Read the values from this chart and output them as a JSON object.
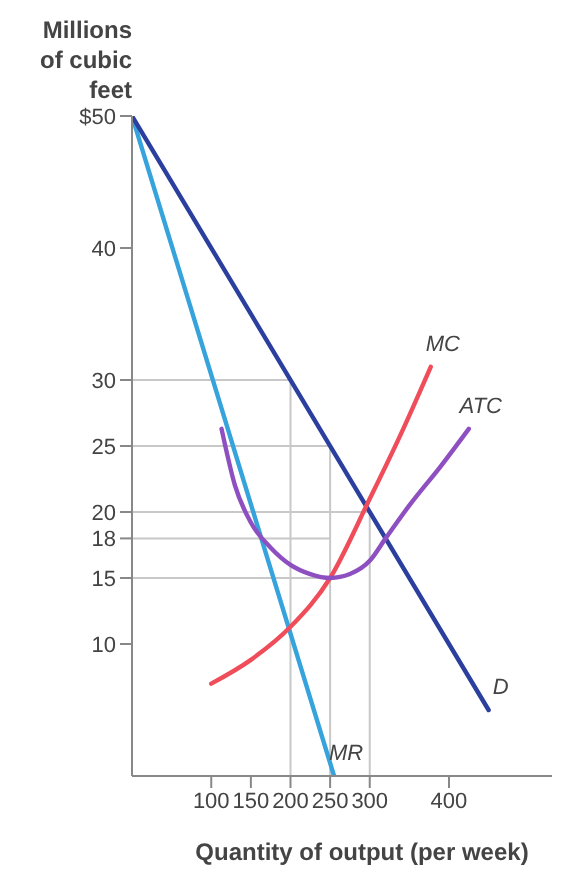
{
  "chart_data": {
    "type": "line",
    "ylabel": "Millions of cubic feet",
    "xlabel": "Quantity of output (per week)",
    "xlim": [
      0,
      530
    ],
    "xticks": [
      100,
      150,
      200,
      250,
      300,
      400
    ],
    "ylim": [
      0,
      50
    ],
    "yticks": [
      {
        "value": 50,
        "label": "$50"
      },
      40,
      30,
      25,
      20,
      18,
      15,
      10
    ],
    "grid": false,
    "legend": false,
    "marker": "none",
    "line_style": "solid",
    "series": [
      {
        "color": "#c8c8c8",
        "x": [
          0,
          200,
          200
        ],
        "values": [
          30,
          30,
          0
        ]
      },
      {
        "color": "#c8c8c8",
        "x": [
          0,
          250,
          250
        ],
        "values": [
          25,
          25,
          0
        ]
      },
      {
        "color": "#c8c8c8",
        "x": [
          0,
          300,
          300
        ],
        "values": [
          20,
          20,
          0
        ]
      },
      {
        "color": "#c8c8c8",
        "x": [
          0,
          250
        ],
        "values": [
          18,
          18
        ]
      },
      {
        "color": "#c8c8c8",
        "x": [
          0,
          250
        ],
        "values": [
          15,
          15
        ]
      },
      {
        "name": "MR",
        "color": "#36a3dc",
        "x": [
          0,
          255
        ],
        "values": [
          50,
          0
        ]
      },
      {
        "name": "D",
        "color": "#2b3f9e",
        "x": [
          0,
          450
        ],
        "values": [
          50,
          5
        ]
      },
      {
        "name": "MC",
        "color": "#f04d5a",
        "x": [
          100,
          150,
          200,
          250,
          300,
          340,
          377
        ],
        "values": [
          7,
          8.8,
          11.3,
          15,
          21,
          26,
          31
        ]
      },
      {
        "name": "ATC",
        "color": "#8e4fc0",
        "x": [
          113,
          130,
          150,
          175,
          200,
          225,
          250,
          275,
          300,
          320,
          350,
          390,
          425
        ],
        "values": [
          26.3,
          22,
          19.2,
          17.3,
          16,
          15.3,
          15,
          15.3,
          16.3,
          18,
          20.5,
          23.5,
          26.3
        ]
      }
    ]
  }
}
